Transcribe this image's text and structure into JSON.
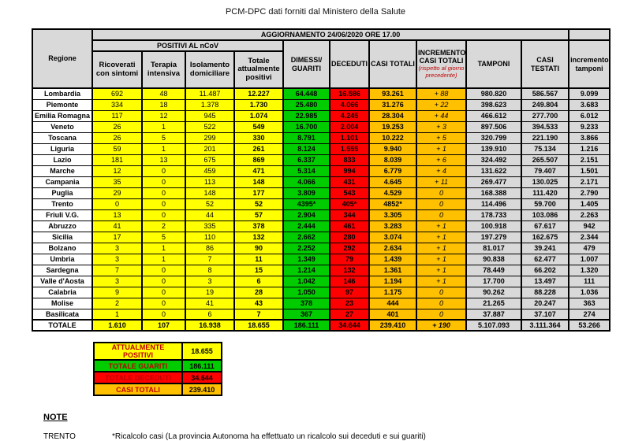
{
  "source_line": "PCM-DPC dati forniti dal Ministero della Salute",
  "table": {
    "update_title": "AGGIORNAMENTO 24/06/2020 ORE 17.00",
    "headers": {
      "regione": "Regione",
      "positivi_group": "POSITIVI AL nCoV",
      "ricoverati": "Ricoverati con sintomi",
      "terapia": "Terapia intensiva",
      "isolamento": "Isolamento domiciliare",
      "totale_positivi": "Totale attualmente positivi",
      "dimessi": "DIMESSI/ GUARITI",
      "deceduti": "DECEDUTI",
      "casi_totali": "CASI TOTALI",
      "incremento_casi": "INCREMENTO CASI TOTALI",
      "incremento_casi_sub": "(rispetto al giorno precedente)",
      "tamponi": "TAMPONI",
      "casi_testati": "CASI TESTATI",
      "incremento_tamponi": "incremento tamponi"
    },
    "rows": [
      [
        "Lombardia",
        "692",
        "48",
        "11.487",
        "12.227",
        "64.448",
        "16.586",
        "93.261",
        "+ 88",
        "980.820",
        "586.567",
        "9.099"
      ],
      [
        "Piemonte",
        "334",
        "18",
        "1.378",
        "1.730",
        "25.480",
        "4.066",
        "31.276",
        "+ 22",
        "398.623",
        "249.804",
        "3.683"
      ],
      [
        "Emilia Romagna",
        "117",
        "12",
        "945",
        "1.074",
        "22.985",
        "4.245",
        "28.304",
        "+ 44",
        "466.612",
        "277.700",
        "6.012"
      ],
      [
        "Veneto",
        "26",
        "1",
        "522",
        "549",
        "16.700",
        "2.004",
        "19.253",
        "+ 3",
        "897.506",
        "394.533",
        "9.233"
      ],
      [
        "Toscana",
        "26",
        "5",
        "299",
        "330",
        "8.791",
        "1.101",
        "10.222",
        "+ 5",
        "320.799",
        "221.190",
        "3.866"
      ],
      [
        "Liguria",
        "59",
        "1",
        "201",
        "261",
        "8.124",
        "1.555",
        "9.940",
        "+ 1",
        "139.910",
        "75.134",
        "1.216"
      ],
      [
        "Lazio",
        "181",
        "13",
        "675",
        "869",
        "6.337",
        "833",
        "8.039",
        "+ 6",
        "324.492",
        "265.507",
        "2.151"
      ],
      [
        "Marche",
        "12",
        "0",
        "459",
        "471",
        "5.314",
        "994",
        "6.779",
        "+ 4",
        "131.622",
        "79.407",
        "1.501"
      ],
      [
        "Campania",
        "35",
        "0",
        "113",
        "148",
        "4.066",
        "431",
        "4.645",
        "+ 11",
        "269.477",
        "130.025",
        "2.171"
      ],
      [
        "Puglia",
        "29",
        "0",
        "148",
        "177",
        "3.809",
        "543",
        "4.529",
        "0",
        "168.388",
        "111.420",
        "2.790"
      ],
      [
        "Trento",
        "0",
        "0",
        "52",
        "52",
        "4395*",
        "405*",
        "4852*",
        "0",
        "114.496",
        "59.700",
        "1.405"
      ],
      [
        "Friuli V.G.",
        "13",
        "0",
        "44",
        "57",
        "2.904",
        "344",
        "3.305",
        "0",
        "178.733",
        "103.086",
        "2.263"
      ],
      [
        "Abruzzo",
        "41",
        "2",
        "335",
        "378",
        "2.444",
        "461",
        "3.283",
        "+ 1",
        "100.918",
        "67.617",
        "942"
      ],
      [
        "Sicilia",
        "17",
        "5",
        "110",
        "132",
        "2.662",
        "280",
        "3.074",
        "+ 1",
        "197.279",
        "162.675",
        "2.344"
      ],
      [
        "Bolzano",
        "3",
        "1",
        "86",
        "90",
        "2.252",
        "292",
        "2.634",
        "+ 1",
        "81.017",
        "39.241",
        "479"
      ],
      [
        "Umbria",
        "3",
        "1",
        "7",
        "11",
        "1.349",
        "79",
        "1.439",
        "+ 1",
        "90.838",
        "62.477",
        "1.007"
      ],
      [
        "Sardegna",
        "7",
        "0",
        "8",
        "15",
        "1.214",
        "132",
        "1.361",
        "+ 1",
        "78.449",
        "66.202",
        "1.320"
      ],
      [
        "Valle d'Aosta",
        "3",
        "0",
        "3",
        "6",
        "1.042",
        "146",
        "1.194",
        "+ 1",
        "17.700",
        "13.497",
        "111"
      ],
      [
        "Calabria",
        "9",
        "0",
        "19",
        "28",
        "1.050",
        "97",
        "1.175",
        "0",
        "90.262",
        "88.228",
        "1.036"
      ],
      [
        "Molise",
        "2",
        "0",
        "41",
        "43",
        "378",
        "23",
        "444",
        "0",
        "21.265",
        "20.247",
        "363"
      ],
      [
        "Basilicata",
        "1",
        "0",
        "6",
        "7",
        "367",
        "27",
        "401",
        "0",
        "37.887",
        "37.107",
        "274"
      ]
    ],
    "total_row": [
      "TOTALE",
      "1.610",
      "107",
      "16.938",
      "18.655",
      "186.111",
      "34.644",
      "239.410",
      "+ 190",
      "5.107.093",
      "3.111.364",
      "53.266"
    ]
  },
  "summary": {
    "rows": [
      {
        "label": "ATTUALMENTE POSITIVI",
        "value": "18.655"
      },
      {
        "label": "TOTALE GUARITI",
        "value": "186.111"
      },
      {
        "label": "TOTALE DECEDUTI",
        "value": "34.644"
      },
      {
        "label": "CASI TOTALI",
        "value": "239.410"
      }
    ]
  },
  "notes": {
    "heading": "NOTE",
    "items": [
      {
        "region": "TRENTO",
        "text": "*Ricalcolo casi (La provincia Autonoma ha  effettuato un ricalcolo sui deceduti e sui guariti)"
      }
    ]
  },
  "colors": {
    "yellow": "#FFFF00",
    "green": "#00CC00",
    "red": "#FF0000",
    "amber": "#FFC000",
    "header_gray": "#D9D9D9",
    "note_red": "#C00000"
  }
}
